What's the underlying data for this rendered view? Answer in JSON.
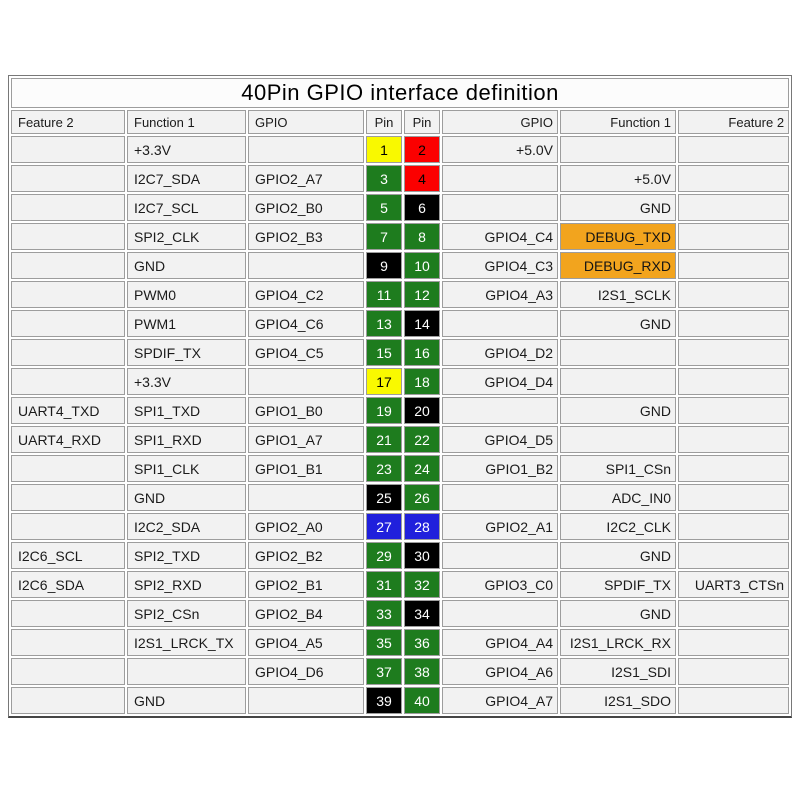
{
  "title": "40Pin GPIO interface definition",
  "headers": [
    "Feature 2",
    "Function 1",
    "GPIO",
    "Pin",
    "Pin",
    "GPIO",
    "Function 1",
    "Feature 2"
  ],
  "colors": {
    "yellow": "#f9f900",
    "red": "#fb0000",
    "green": "#1e7c1e",
    "black": "#000000",
    "blue": "#2020dc",
    "orange": "#f2a41e",
    "pin_text_light": "#ffffff",
    "pin_text_dark": "#000000"
  },
  "rows": [
    {
      "feature2_left": "",
      "function1_left": "+3.3V",
      "gpio_left": "",
      "pin_left": "1",
      "pin_left_color": "yellow",
      "pin_right": "2",
      "pin_right_color": "red",
      "gpio_right": "+5.0V",
      "function1_right": "",
      "function1_right_highlight": false,
      "feature2_right": ""
    },
    {
      "feature2_left": "",
      "function1_left": "I2C7_SDA",
      "gpio_left": "GPIO2_A7",
      "pin_left": "3",
      "pin_left_color": "green",
      "pin_right": "4",
      "pin_right_color": "red",
      "gpio_right": "",
      "function1_right": "+5.0V",
      "function1_right_highlight": false,
      "feature2_right": ""
    },
    {
      "feature2_left": "",
      "function1_left": "I2C7_SCL",
      "gpio_left": "GPIO2_B0",
      "pin_left": "5",
      "pin_left_color": "green",
      "pin_right": "6",
      "pin_right_color": "black",
      "gpio_right": "",
      "function1_right": "GND",
      "function1_right_highlight": false,
      "feature2_right": ""
    },
    {
      "feature2_left": "",
      "function1_left": "SPI2_CLK",
      "gpio_left": "GPIO2_B3",
      "pin_left": "7",
      "pin_left_color": "green",
      "pin_right": "8",
      "pin_right_color": "green",
      "gpio_right": "GPIO4_C4",
      "function1_right": "DEBUG_TXD",
      "function1_right_highlight": true,
      "feature2_right": ""
    },
    {
      "feature2_left": "",
      "function1_left": "GND",
      "gpio_left": "",
      "pin_left": "9",
      "pin_left_color": "black",
      "pin_right": "10",
      "pin_right_color": "green",
      "gpio_right": "GPIO4_C3",
      "function1_right": "DEBUG_RXD",
      "function1_right_highlight": true,
      "feature2_right": ""
    },
    {
      "feature2_left": "",
      "function1_left": "PWM0",
      "gpio_left": "GPIO4_C2",
      "pin_left": "11",
      "pin_left_color": "green",
      "pin_right": "12",
      "pin_right_color": "green",
      "gpio_right": "GPIO4_A3",
      "function1_right": "I2S1_SCLK",
      "function1_right_highlight": false,
      "feature2_right": ""
    },
    {
      "feature2_left": "",
      "function1_left": "PWM1",
      "gpio_left": "GPIO4_C6",
      "pin_left": "13",
      "pin_left_color": "green",
      "pin_right": "14",
      "pin_right_color": "black",
      "gpio_right": "",
      "function1_right": "GND",
      "function1_right_highlight": false,
      "feature2_right": ""
    },
    {
      "feature2_left": "",
      "function1_left": "SPDIF_TX",
      "gpio_left": "GPIO4_C5",
      "pin_left": "15",
      "pin_left_color": "green",
      "pin_right": "16",
      "pin_right_color": "green",
      "gpio_right": "GPIO4_D2",
      "function1_right": "",
      "function1_right_highlight": false,
      "feature2_right": ""
    },
    {
      "feature2_left": "",
      "function1_left": "+3.3V",
      "gpio_left": "",
      "pin_left": "17",
      "pin_left_color": "yellow",
      "pin_right": "18",
      "pin_right_color": "green",
      "gpio_right": "GPIO4_D4",
      "function1_right": "",
      "function1_right_highlight": false,
      "feature2_right": ""
    },
    {
      "feature2_left": "UART4_TXD",
      "function1_left": "SPI1_TXD",
      "gpio_left": "GPIO1_B0",
      "pin_left": "19",
      "pin_left_color": "green",
      "pin_right": "20",
      "pin_right_color": "black",
      "gpio_right": "",
      "function1_right": "GND",
      "function1_right_highlight": false,
      "feature2_right": ""
    },
    {
      "feature2_left": "UART4_RXD",
      "function1_left": "SPI1_RXD",
      "gpio_left": "GPIO1_A7",
      "pin_left": "21",
      "pin_left_color": "green",
      "pin_right": "22",
      "pin_right_color": "green",
      "gpio_right": "GPIO4_D5",
      "function1_right": "",
      "function1_right_highlight": false,
      "feature2_right": ""
    },
    {
      "feature2_left": "",
      "function1_left": "SPI1_CLK",
      "gpio_left": "GPIO1_B1",
      "pin_left": "23",
      "pin_left_color": "green",
      "pin_right": "24",
      "pin_right_color": "green",
      "gpio_right": "GPIO1_B2",
      "function1_right": "SPI1_CSn",
      "function1_right_highlight": false,
      "feature2_right": ""
    },
    {
      "feature2_left": "",
      "function1_left": "GND",
      "gpio_left": "",
      "pin_left": "25",
      "pin_left_color": "black",
      "pin_right": "26",
      "pin_right_color": "green",
      "gpio_right": "",
      "function1_right": "ADC_IN0",
      "function1_right_highlight": false,
      "feature2_right": ""
    },
    {
      "feature2_left": "",
      "function1_left": "I2C2_SDA",
      "gpio_left": "GPIO2_A0",
      "pin_left": "27",
      "pin_left_color": "blue",
      "pin_right": "28",
      "pin_right_color": "blue",
      "gpio_right": "GPIO2_A1",
      "function1_right": "I2C2_CLK",
      "function1_right_highlight": false,
      "feature2_right": ""
    },
    {
      "feature2_left": "I2C6_SCL",
      "function1_left": "SPI2_TXD",
      "gpio_left": "GPIO2_B2",
      "pin_left": "29",
      "pin_left_color": "green",
      "pin_right": "30",
      "pin_right_color": "black",
      "gpio_right": "",
      "function1_right": "GND",
      "function1_right_highlight": false,
      "feature2_right": ""
    },
    {
      "feature2_left": "I2C6_SDA",
      "function1_left": "SPI2_RXD",
      "gpio_left": "GPIO2_B1",
      "pin_left": "31",
      "pin_left_color": "green",
      "pin_right": "32",
      "pin_right_color": "green",
      "gpio_right": "GPIO3_C0",
      "function1_right": "SPDIF_TX",
      "function1_right_highlight": false,
      "feature2_right": "UART3_CTSn"
    },
    {
      "feature2_left": "",
      "function1_left": "SPI2_CSn",
      "gpio_left": "GPIO2_B4",
      "pin_left": "33",
      "pin_left_color": "green",
      "pin_right": "34",
      "pin_right_color": "black",
      "gpio_right": "",
      "function1_right": "GND",
      "function1_right_highlight": false,
      "feature2_right": ""
    },
    {
      "feature2_left": "",
      "function1_left": "I2S1_LRCK_TX",
      "gpio_left": "GPIO4_A5",
      "pin_left": "35",
      "pin_left_color": "green",
      "pin_right": "36",
      "pin_right_color": "green",
      "gpio_right": "GPIO4_A4",
      "function1_right": "I2S1_LRCK_RX",
      "function1_right_highlight": false,
      "feature2_right": ""
    },
    {
      "feature2_left": "",
      "function1_left": "",
      "gpio_left": "GPIO4_D6",
      "pin_left": "37",
      "pin_left_color": "green",
      "pin_right": "38",
      "pin_right_color": "green",
      "gpio_right": "GPIO4_A6",
      "function1_right": "I2S1_SDI",
      "function1_right_highlight": false,
      "feature2_right": ""
    },
    {
      "feature2_left": "",
      "function1_left": "GND",
      "gpio_left": "",
      "pin_left": "39",
      "pin_left_color": "black",
      "pin_right": "40",
      "pin_right_color": "green",
      "gpio_right": "GPIO4_A7",
      "function1_right": "I2S1_SDO",
      "function1_right_highlight": false,
      "feature2_right": ""
    }
  ]
}
